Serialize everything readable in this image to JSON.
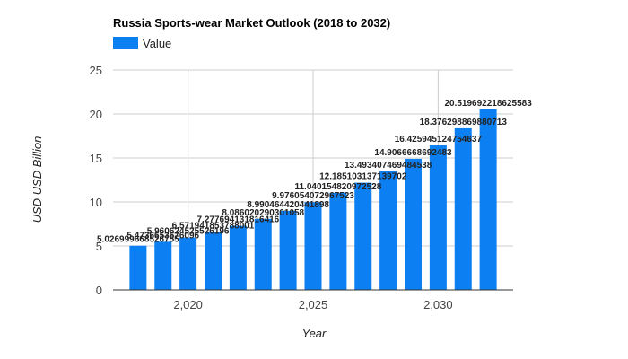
{
  "chart_data": {
    "type": "bar",
    "title": "Russia Sports-wear Market Outlook (2018 to 2032)",
    "xlabel": "Year",
    "ylabel": "USD USD Billion",
    "legend": {
      "position": "top-left",
      "entries": [
        "Value"
      ]
    },
    "series": [
      {
        "name": "Value",
        "color": "#0c7ff2",
        "x": [
          2018,
          2019,
          2020,
          2021,
          2022,
          2023,
          2024,
          2025,
          2026,
          2027,
          2028,
          2029,
          2030,
          2031,
          2032
        ],
        "values": [
          5.026999668526755,
          5.4736653676096,
          5.960624525526196,
          6.571941853788001,
          7.277694131816416,
          8.086020290301057,
          8.990464420441898,
          9.976054072967523,
          11.040154820972528,
          12.185103137139702,
          13.493407469484538,
          14.9066668692483,
          16.425945124754637,
          18.376298869880713,
          20.519692218625583
        ],
        "labels": [
          "5.026999668526755",
          "5.4736653676096",
          "5.960624525526196",
          "6.571941853788001",
          "7.277694131816416",
          "8.086020290301058",
          "8.990464420441898",
          "9.976054072967523",
          "11.040154820972528",
          "12.185103137139702",
          "13.493407469484538",
          "14.9066668692483",
          "16.425945124754637",
          "18.376298869880713",
          "20.519692218625583"
        ]
      }
    ],
    "xticks": [
      2020,
      2025,
      2030
    ],
    "xtick_labels": [
      "2,020",
      "2,025",
      "2,030"
    ],
    "yticks": [
      0,
      5,
      10,
      15,
      20,
      25
    ],
    "ytick_labels": [
      "0",
      "5",
      "10",
      "15",
      "20",
      "25"
    ],
    "xlim": [
      2017,
      2033
    ],
    "ylim": [
      0,
      25
    ],
    "grid": true
  }
}
